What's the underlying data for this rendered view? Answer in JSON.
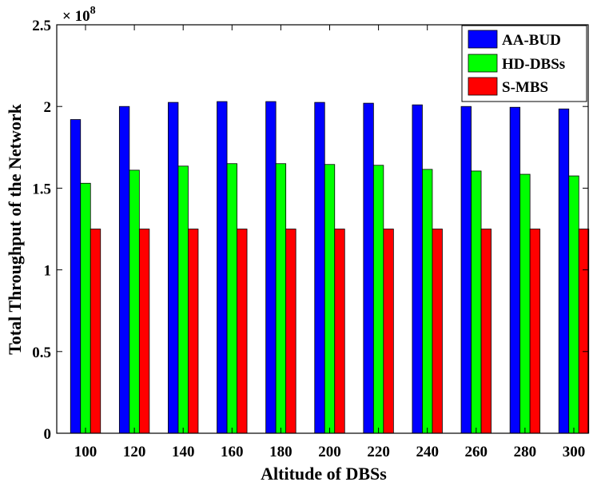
{
  "chart_data": {
    "type": "bar",
    "title": "",
    "xlabel": "Altitude of DBSs",
    "ylabel": "Total Throughput of the Network",
    "exponent_label": "× 10",
    "exponent_power": "8",
    "categories": [
      "100",
      "120",
      "140",
      "160",
      "180",
      "200",
      "220",
      "240",
      "260",
      "280",
      "300"
    ],
    "series": [
      {
        "name": "AA-BUD",
        "color": "#0000ff",
        "values": [
          1.92,
          2.0,
          2.025,
          2.03,
          2.03,
          2.025,
          2.02,
          2.01,
          2.0,
          1.995,
          1.985
        ]
      },
      {
        "name": "HD-DBSs",
        "color": "#00ff00",
        "values": [
          1.53,
          1.61,
          1.635,
          1.65,
          1.65,
          1.645,
          1.64,
          1.615,
          1.605,
          1.585,
          1.575
        ]
      },
      {
        "name": "S-MBS",
        "color": "#ff0000",
        "values": [
          1.25,
          1.25,
          1.25,
          1.25,
          1.25,
          1.25,
          1.25,
          1.25,
          1.25,
          1.25,
          1.25
        ]
      }
    ],
    "ylim": [
      0,
      2.5
    ],
    "yticks": [
      "0",
      "0.5",
      "1",
      "1.5",
      "2",
      "2.5"
    ],
    "ytick_values": [
      0,
      0.5,
      1,
      1.5,
      2,
      2.5
    ],
    "legend_position": "top-right",
    "grid": false
  }
}
